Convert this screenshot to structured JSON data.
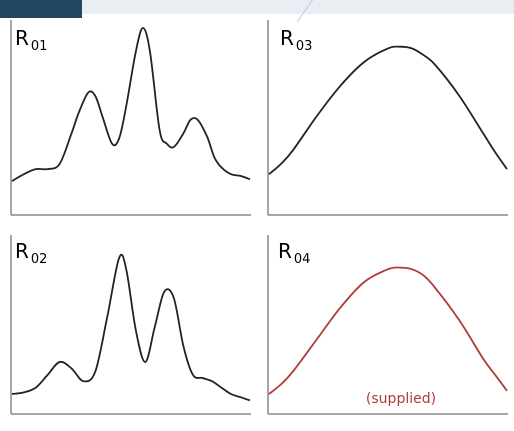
{
  "colors": {
    "black_curve": "#222222",
    "supplied_curve": "#b03a3a",
    "axis": "#888888",
    "banner_light": "#e8eef3",
    "banner_dark": "#21475f"
  },
  "chart_data": [
    {
      "type": "line",
      "title": "R01",
      "title_main": "R",
      "title_sub": "01",
      "xlim": [
        0,
        100
      ],
      "ylim": [
        0,
        100
      ],
      "x": [
        0,
        5,
        10,
        15,
        20,
        25,
        28,
        32,
        35,
        38,
        42,
        45,
        48,
        52,
        55,
        58,
        62,
        65,
        68,
        72,
        75,
        78,
        82,
        85,
        88,
        92,
        96,
        100
      ],
      "y": [
        10,
        14,
        17,
        17,
        20,
        38,
        50,
        62,
        60,
        48,
        32,
        35,
        54,
        86,
        100,
        86,
        40,
        32,
        30,
        38,
        46,
        46,
        36,
        24,
        18,
        14,
        13,
        11
      ],
      "color": "black"
    },
    {
      "type": "line",
      "title": "R03",
      "title_main": "R",
      "title_sub": "03",
      "xlim": [
        0,
        100
      ],
      "ylim": [
        0,
        100
      ],
      "x": [
        0,
        5,
        10,
        20,
        30,
        40,
        50,
        55,
        60,
        65,
        70,
        80,
        90,
        95,
        100
      ],
      "y": [
        14,
        20,
        28,
        48,
        66,
        80,
        88,
        89,
        88,
        84,
        78,
        60,
        38,
        27,
        17
      ],
      "color": "black"
    },
    {
      "type": "line",
      "title": "R02",
      "title_main": "R",
      "title_sub": "02",
      "xlim": [
        0,
        100
      ],
      "ylim": [
        0,
        100
      ],
      "x": [
        0,
        5,
        10,
        15,
        20,
        25,
        30,
        35,
        40,
        45,
        48,
        52,
        56,
        60,
        64,
        68,
        72,
        76,
        80,
        84,
        88,
        92,
        96,
        100
      ],
      "y": [
        10,
        11,
        14,
        22,
        30,
        26,
        18,
        24,
        58,
        95,
        88,
        50,
        30,
        52,
        74,
        70,
        40,
        22,
        20,
        18,
        14,
        10,
        8,
        6
      ],
      "color": "black"
    },
    {
      "type": "line",
      "title": "R04",
      "title_main": "R",
      "title_sub": "04",
      "annotation": "(supplied)",
      "xlim": [
        0,
        100
      ],
      "ylim": [
        0,
        100
      ],
      "x": [
        0,
        5,
        10,
        20,
        30,
        40,
        50,
        55,
        60,
        65,
        70,
        80,
        90,
        95,
        100
      ],
      "y": [
        10,
        16,
        24,
        44,
        64,
        80,
        88,
        89,
        88,
        84,
        76,
        56,
        32,
        22,
        12
      ],
      "color": "red"
    }
  ]
}
